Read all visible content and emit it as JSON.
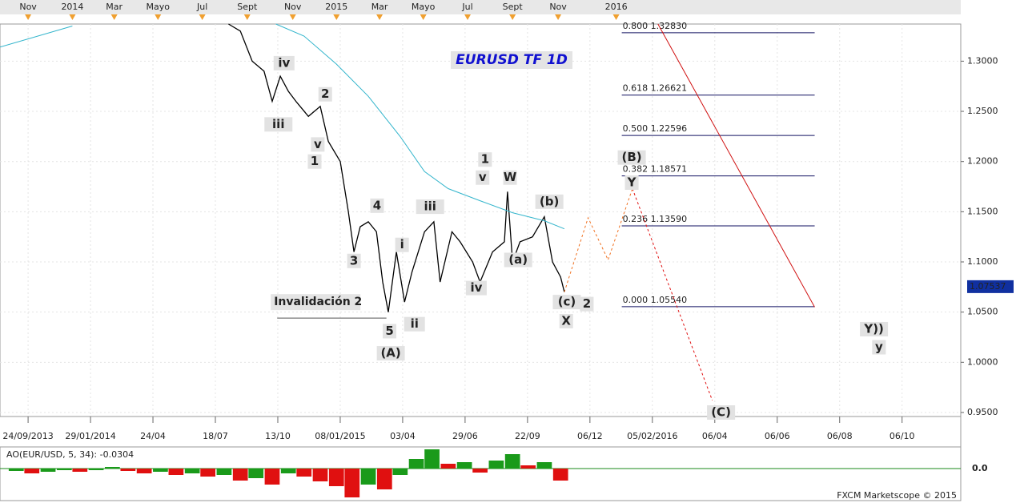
{
  "chart_data": [
    {
      "type": "line",
      "title": "EURUSD TF 1D",
      "xlim": [
        -0.45,
        14.94
      ],
      "xticks": [
        {
          "value": 0,
          "label": "24/09/2013"
        },
        {
          "value": 1,
          "label": "29/01/2014"
        },
        {
          "value": 2,
          "label": "24/04"
        },
        {
          "value": 3,
          "label": "18/07"
        },
        {
          "value": 4,
          "label": "13/10"
        },
        {
          "value": 5,
          "label": "08/01/2015"
        },
        {
          "value": 6,
          "label": "03/04"
        },
        {
          "value": 7,
          "label": "29/06"
        },
        {
          "value": 8,
          "label": "22/09"
        },
        {
          "value": 9,
          "label": "06/12"
        },
        {
          "value": 10,
          "label": "05/02/2016"
        },
        {
          "value": 11,
          "label": "06/04"
        },
        {
          "value": 12,
          "label": "06/06"
        },
        {
          "value": 13,
          "label": "06/08"
        },
        {
          "value": 14,
          "label": "06/10"
        }
      ],
      "top_ticks": [
        {
          "value": 0,
          "label": "Nov"
        },
        {
          "value": 0.71,
          "label": "2014"
        },
        {
          "value": 1.38,
          "label": "Mar"
        },
        {
          "value": 2.08,
          "label": "Mayo"
        },
        {
          "value": 2.79,
          "label": "Jul"
        },
        {
          "value": 3.51,
          "label": "Sept"
        },
        {
          "value": 4.24,
          "label": "Nov"
        },
        {
          "value": 4.94,
          "label": "2015"
        },
        {
          "value": 5.63,
          "label": "Mar"
        },
        {
          "value": 6.33,
          "label": "Mayo"
        },
        {
          "value": 7.04,
          "label": "Jul"
        },
        {
          "value": 7.76,
          "label": "Sept"
        },
        {
          "value": 8.49,
          "label": "Nov"
        },
        {
          "value": 9.42,
          "label": "2016"
        }
      ],
      "ylim": [
        0.946,
        1.337
      ],
      "yticks": [
        {
          "value": 0.95,
          "label": "0.9500"
        },
        {
          "value": 1.0,
          "label": "1.0000"
        },
        {
          "value": 1.05,
          "label": "1.0500"
        },
        {
          "value": 1.1,
          "label": "1.1000"
        },
        {
          "value": 1.15,
          "label": "1.1500"
        },
        {
          "value": 1.2,
          "label": "1.2000"
        },
        {
          "value": 1.25,
          "label": "1.2500"
        },
        {
          "value": 1.3,
          "label": "1.3000"
        }
      ],
      "grid": true,
      "last_price": 1.07537,
      "series": [
        {
          "color": "#000000",
          "dash": false,
          "x": [
            3.21,
            3.4,
            3.59,
            3.78,
            3.91,
            4.04,
            4.17,
            4.29,
            4.49,
            4.68,
            4.81,
            5.0,
            5.13,
            5.22,
            5.32,
            5.45,
            5.58,
            5.68,
            5.77,
            5.9,
            6.03,
            6.15,
            6.35,
            6.5,
            6.6,
            6.79,
            6.92,
            7.12,
            7.24,
            7.44,
            7.63,
            7.68,
            7.76,
            7.88,
            8.08,
            8.27,
            8.4,
            8.53,
            8.59
          ],
          "values": [
            1.337,
            1.33,
            1.3,
            1.29,
            1.26,
            1.285,
            1.27,
            1.26,
            1.245,
            1.255,
            1.22,
            1.2,
            1.15,
            1.11,
            1.135,
            1.14,
            1.13,
            1.08,
            1.05,
            1.11,
            1.06,
            1.09,
            1.13,
            1.14,
            1.08,
            1.13,
            1.12,
            1.1,
            1.08,
            1.11,
            1.12,
            1.17,
            1.1,
            1.12,
            1.125,
            1.145,
            1.1,
            1.085,
            1.07
          ]
        },
        {
          "color": "#33b5cc",
          "dash": false,
          "x": [
            -0.45,
            0.71,
            null,
            3.97,
            4.42,
            4.94,
            5.45,
            5.96,
            6.35,
            6.73,
            7.24,
            7.76,
            8.27,
            8.59
          ],
          "values": [
            1.314,
            1.335,
            null,
            1.337,
            1.325,
            1.297,
            1.265,
            1.225,
            1.19,
            1.173,
            1.161,
            1.149,
            1.141,
            1.133
          ]
        },
        {
          "color": "#f07020",
          "dash": true,
          "x": [
            8.59,
            8.97,
            9.29,
            9.68
          ],
          "values": [
            1.07,
            1.144,
            1.102,
            1.173
          ]
        },
        {
          "color": "#e01010",
          "dash": true,
          "x": [
            9.68,
            10.96
          ],
          "values": [
            1.173,
            0.962
          ]
        },
        {
          "color": "#d01010",
          "dash": false,
          "x": [
            10.09,
            12.6
          ],
          "values": [
            1.337,
            1.055
          ]
        }
      ],
      "fib_levels": [
        {
          "label": "0.800 1.32830",
          "value": 1.3283
        },
        {
          "label": "0.618 1.26621",
          "value": 1.26621
        },
        {
          "label": "0.500 1.22596",
          "value": 1.22596
        },
        {
          "label": "0.382 1.18571",
          "value": 1.18571
        },
        {
          "label": "0.236 1.13590",
          "value": 1.1359
        },
        {
          "label": "0.000 1.05540",
          "value": 1.0554
        }
      ],
      "fib_x": [
        9.51,
        12.6
      ],
      "invalidation": {
        "text": "Invalidación 2",
        "value": 1.044,
        "x": [
          3.99,
          5.74
        ]
      },
      "annotations": [
        {
          "text": "iv",
          "x": 4.1,
          "y": 1.298,
          "color": "#1a8a1a"
        },
        {
          "text": "iii",
          "x": 4.01,
          "y": 1.237,
          "color": "#1a8a1a"
        },
        {
          "text": "v",
          "x": 4.64,
          "y": 1.217,
          "color": "#1a8a1a"
        },
        {
          "text": "2",
          "x": 4.76,
          "y": 1.267,
          "color": "#f07020"
        },
        {
          "text": "1",
          "x": 4.59,
          "y": 1.2,
          "color": "#f07020"
        },
        {
          "text": "4",
          "x": 5.59,
          "y": 1.156,
          "color": "#f07020"
        },
        {
          "text": "3",
          "x": 5.22,
          "y": 1.101,
          "color": "#f07020"
        },
        {
          "text": "5",
          "x": 5.79,
          "y": 1.031,
          "color": "#f07020"
        },
        {
          "text": "(A)",
          "x": 5.81,
          "y": 1.009,
          "color": "#e01010"
        },
        {
          "text": "i",
          "x": 5.99,
          "y": 1.117,
          "color": "#888888"
        },
        {
          "text": "ii",
          "x": 6.19,
          "y": 1.038,
          "color": "#888888"
        },
        {
          "text": "iii",
          "x": 6.44,
          "y": 1.155,
          "color": "#888888"
        },
        {
          "text": "iv",
          "x": 7.18,
          "y": 1.074,
          "color": "#888888"
        },
        {
          "text": "v",
          "x": 7.28,
          "y": 1.184,
          "color": "#888888"
        },
        {
          "text": "1",
          "x": 7.32,
          "y": 1.202,
          "color": "#888888"
        },
        {
          "text": "W",
          "x": 7.72,
          "y": 1.184,
          "color": "#f07020"
        },
        {
          "text": "(a)",
          "x": 7.85,
          "y": 1.102,
          "color": "#1a8a1a"
        },
        {
          "text": "(b)",
          "x": 8.35,
          "y": 1.16,
          "color": "#1a8a1a"
        },
        {
          "text": "(c)",
          "x": 8.63,
          "y": 1.06,
          "color": "#1a8a1a"
        },
        {
          "text": "2",
          "x": 8.95,
          "y": 1.058,
          "color": "#888888"
        },
        {
          "text": "X",
          "x": 8.62,
          "y": 1.041,
          "color": "#f07020"
        },
        {
          "text": "(B)",
          "x": 9.67,
          "y": 1.204,
          "color": "#e01010"
        },
        {
          "text": "Y",
          "x": 9.67,
          "y": 1.179,
          "color": "#f07020"
        },
        {
          "text": "(C)",
          "x": 11.1,
          "y": 0.95,
          "color": "#e01010"
        },
        {
          "text": "Y))",
          "x": 13.55,
          "y": 1.033,
          "color": "#111111"
        },
        {
          "text": "y",
          "x": 13.63,
          "y": 1.015,
          "color": "#802090"
        }
      ]
    },
    {
      "type": "bar",
      "title": "AO(EUR/USD, 5, 34): -0.0304",
      "source": "FXCM Marketscope © 2015",
      "xlim": [
        -0.45,
        14.94
      ],
      "ylim": [
        -0.04,
        0.025
      ],
      "yticks": [
        {
          "value": 0,
          "label": "0.0"
        }
      ],
      "up_color": "#1a9a1a",
      "down_color": "#e01010",
      "x": [
        -0.19,
        0.06,
        0.32,
        0.58,
        0.83,
        1.09,
        1.35,
        1.6,
        1.86,
        2.12,
        2.37,
        2.63,
        2.88,
        3.14,
        3.4,
        3.65,
        3.91,
        4.17,
        4.42,
        4.68,
        4.94,
        5.19,
        5.45,
        5.71,
        5.96,
        6.22,
        6.47,
        6.73,
        6.99,
        7.24,
        7.5,
        7.76,
        8.01,
        8.27,
        8.53
      ],
      "values": [
        -0.003,
        -0.006,
        -0.004,
        -0.002,
        -0.004,
        -0.002,
        0.002,
        -0.003,
        -0.006,
        -0.004,
        -0.008,
        -0.006,
        -0.01,
        -0.008,
        -0.015,
        -0.012,
        -0.02,
        -0.006,
        -0.01,
        -0.016,
        -0.022,
        -0.036,
        -0.02,
        -0.026,
        -0.008,
        0.012,
        0.024,
        0.006,
        0.008,
        -0.005,
        0.01,
        0.018,
        0.004,
        0.008,
        -0.015
      ]
    }
  ]
}
